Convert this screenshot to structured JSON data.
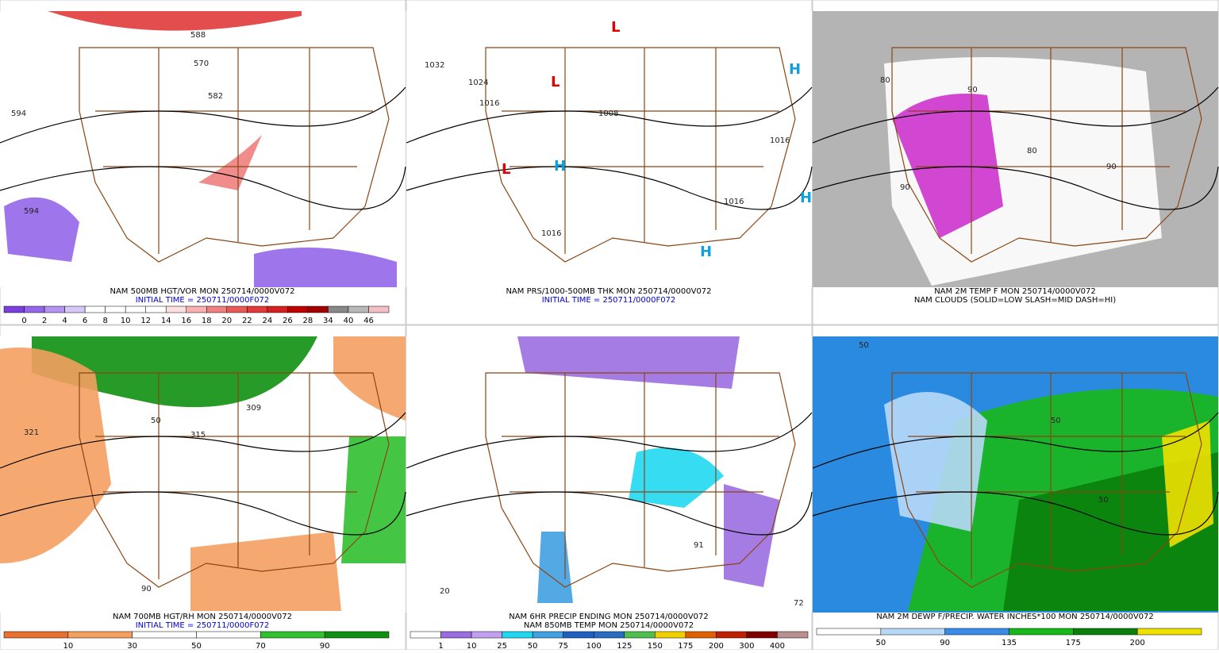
{
  "panels": [
    {
      "captions": [
        "NAM 500MB HGT/VOR MON 250714/0000V072",
        "INITIAL TIME = 250711/0000F072"
      ],
      "labels": [
        "594",
        "588",
        "582",
        "570",
        "594"
      ],
      "colorbar": {
        "labels": [
          0,
          2,
          4,
          6,
          8,
          10,
          12,
          14,
          16,
          18,
          20,
          22,
          24,
          26,
          28,
          34,
          40,
          46
        ],
        "colors": [
          "#7b3fe0",
          "#9466e8",
          "#b394f0",
          "#d6c8f8",
          "#ffffff",
          "#ffffff",
          "#ffffff",
          "#ffffff",
          "#fde0e0",
          "#f8b0b0",
          "#f08080",
          "#e85a5a",
          "#e03a3a",
          "#d42020",
          "#c00000",
          "#a00000",
          "#888888",
          "#b8b8b8",
          "#f4c0c8"
        ]
      }
    },
    {
      "captions": [
        "NAM PRS/1000-500MB THK MON 250714/0000V072",
        "INITIAL TIME = 250711/0000F072"
      ],
      "labels": [
        "1032",
        "1024",
        "1016",
        "1008",
        "1016",
        "1016",
        "1016",
        "L",
        "L",
        "L",
        "H",
        "H",
        "H",
        "H"
      ]
    },
    {
      "captions": [
        "NAM 2M TEMP F MON 250714/0000V072",
        "NAM CLOUDS (SOLID=LOW SLASH=MID DASH=HI)"
      ],
      "labels": [
        "80",
        "90",
        "90",
        "80",
        "90"
      ]
    },
    {
      "captions": [
        "NAM 700MB HGT/RH MON 250714/0000V072",
        "INITIAL TIME = 250711/0000F072"
      ],
      "labels": [
        "309",
        "315",
        "321",
        "50",
        "90"
      ],
      "colorbar": {
        "labels": [
          10,
          30,
          50,
          70,
          90
        ],
        "colors": [
          "#e87030",
          "#f4a060",
          "#ffffff",
          "#ffffff",
          "#30c030",
          "#109010"
        ]
      }
    },
    {
      "captions": [
        "NAM 6HR PRECIP ENDING MON 250714/0000V072",
        "NAM 850MB TEMP MON 250714/0000V072"
      ],
      "labels": [
        "20",
        "91",
        "72"
      ],
      "colorbar": {
        "labels": [
          1,
          10,
          25,
          50,
          75,
          100,
          125,
          150,
          175,
          200,
          300,
          400
        ],
        "colors": [
          "#ffffff",
          "#9a6ee0",
          "#c0a0f0",
          "#20d8f0",
          "#40a0e0",
          "#2060c0",
          "#2a6cc4",
          "#4fc04f",
          "#f0d000",
          "#e06000",
          "#c02000",
          "#800000",
          "#b89090"
        ]
      }
    },
    {
      "captions": [
        "NAM 2M DEWP F/PRECIP. WATER INCHES*100 MON 250714/0000V072"
      ],
      "labels": [
        "50",
        "50",
        "50"
      ],
      "colorbar": {
        "labels": [
          50,
          90,
          135,
          175,
          200
        ],
        "colors": [
          "#ffffff",
          "#b8d8f8",
          "#3a8ae8",
          "#18b818",
          "#0a800a",
          "#f0e000"
        ]
      }
    }
  ]
}
